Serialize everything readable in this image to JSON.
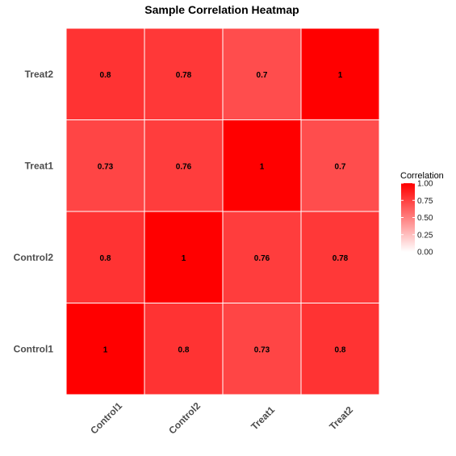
{
  "chart_data": {
    "type": "heatmap",
    "title": "Sample Correlation Heatmap",
    "xlabel": "",
    "ylabel": "",
    "x_categories": [
      "Control1",
      "Control2",
      "Treat1",
      "Treat2"
    ],
    "y_categories": [
      "Control1",
      "Control2",
      "Treat1",
      "Treat2"
    ],
    "values": [
      [
        1,
        0.8,
        0.73,
        0.8
      ],
      [
        0.8,
        1,
        0.76,
        0.78
      ],
      [
        0.73,
        0.76,
        1,
        0.7
      ],
      [
        0.8,
        0.78,
        0.7,
        1
      ]
    ],
    "value_labels": [
      [
        "1",
        "0.8",
        "0.73",
        "0.8"
      ],
      [
        "0.8",
        "1",
        "0.76",
        "0.78"
      ],
      [
        "0.73",
        "0.76",
        "1",
        "0.7"
      ],
      [
        "0.8",
        "0.78",
        "0.7",
        "1"
      ]
    ],
    "legend": {
      "title": "Correlation",
      "ticks": [
        "1.00",
        "0.75",
        "0.50",
        "0.25",
        "0.00"
      ],
      "tick_values": [
        1.0,
        0.75,
        0.5,
        0.25,
        0.0
      ],
      "range": [
        0,
        1
      ],
      "placement": "right"
    },
    "colors": {
      "low": "#ffffff",
      "high": "#ff0000",
      "grid_line": "#ffffff"
    },
    "grid": false
  }
}
